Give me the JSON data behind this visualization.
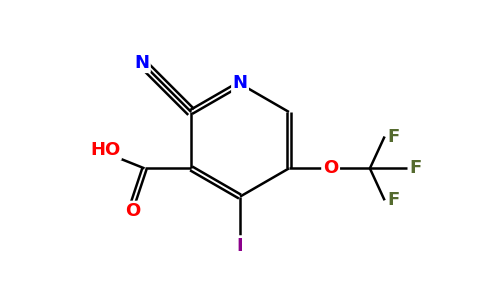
{
  "background_color": "#ffffff",
  "atom_colors": {
    "N": "#0000ff",
    "O": "#ff0000",
    "F": "#556b2f",
    "I": "#8b008b",
    "C": "#000000"
  },
  "bond_color": "#000000",
  "figsize": [
    4.84,
    3.0
  ],
  "dpi": 100
}
